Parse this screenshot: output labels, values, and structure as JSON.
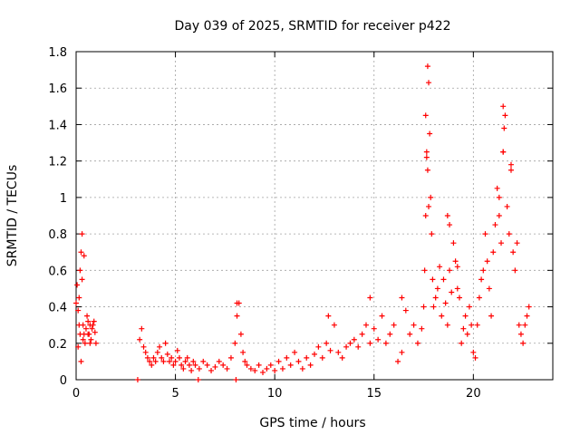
{
  "chart_data": {
    "type": "scatter",
    "title": "Day 039 of 2025, SRMTID for receiver p422",
    "xlabel": "GPS time / hours",
    "ylabel": "SRMTID / TECUs",
    "xlim": [
      0,
      24
    ],
    "ylim": [
      0,
      1.8
    ],
    "xticks": [
      "0",
      "5",
      "10",
      "15",
      "20"
    ],
    "xtick_values": [
      0,
      5,
      10,
      15,
      20
    ],
    "yticks": [
      "0",
      "0.2",
      "0.4",
      "0.6",
      "0.8",
      "1",
      "1.2",
      "1.4",
      "1.6",
      "1.8"
    ],
    "ytick_values": [
      0,
      0.2,
      0.4,
      0.6,
      0.8,
      1.0,
      1.2,
      1.4,
      1.6,
      1.8
    ],
    "grid": true,
    "marker": "+",
    "color": "#ff0000",
    "series": [
      {
        "name": "SRMTID",
        "x": [
          0.0,
          0.05,
          0.1,
          0.15,
          0.2,
          0.25,
          0.3,
          0.35,
          0.4,
          0.45,
          0.5,
          0.55,
          0.6,
          0.65,
          0.7,
          0.75,
          0.8,
          0.85,
          0.9,
          0.95,
          1.0,
          0.1,
          0.2,
          0.3,
          0.4,
          0.25,
          0.15,
          0.35,
          0.6,
          0.7,
          3.1,
          6.15,
          8.05,
          3.2,
          3.3,
          3.4,
          3.5,
          3.6,
          3.7,
          3.8,
          3.9,
          4.0,
          4.1,
          4.2,
          4.3,
          4.4,
          4.5,
          4.6,
          4.7,
          4.8,
          4.9,
          5.0,
          5.1,
          5.2,
          5.3,
          5.4,
          5.5,
          5.6,
          5.7,
          5.8,
          5.9,
          6.0,
          6.2,
          6.4,
          6.6,
          6.8,
          7.0,
          7.2,
          7.4,
          7.6,
          7.8,
          8.0,
          8.1,
          8.2,
          8.3,
          8.4,
          8.5,
          8.6,
          8.8,
          9.0,
          9.2,
          9.4,
          9.6,
          9.8,
          10.0,
          10.2,
          10.4,
          10.6,
          10.8,
          11.0,
          11.2,
          11.4,
          11.6,
          11.8,
          12.0,
          12.2,
          12.4,
          12.6,
          12.8,
          13.0,
          13.2,
          13.4,
          13.6,
          13.8,
          14.0,
          14.2,
          14.4,
          14.6,
          14.8,
          15.0,
          15.2,
          15.4,
          15.6,
          15.8,
          16.0,
          16.2,
          16.4,
          16.6,
          16.8,
          17.0,
          17.2,
          17.4,
          17.5,
          17.55,
          17.6,
          17.65,
          17.7,
          17.75,
          17.8,
          17.85,
          17.9,
          17.95,
          18.0,
          18.1,
          18.2,
          18.3,
          18.4,
          18.5,
          18.6,
          18.7,
          18.8,
          18.9,
          19.0,
          19.1,
          19.2,
          19.3,
          19.4,
          19.5,
          19.6,
          19.7,
          19.8,
          19.9,
          20.0,
          20.1,
          20.2,
          20.3,
          20.4,
          20.5,
          20.6,
          20.7,
          20.8,
          20.9,
          21.0,
          21.1,
          21.2,
          21.3,
          21.4,
          21.5,
          21.6,
          21.7,
          21.8,
          21.9,
          22.0,
          22.1,
          22.2,
          22.3,
          22.4,
          22.5,
          22.6,
          22.7,
          22.8,
          17.6,
          17.65,
          17.7,
          17.75,
          21.5,
          21.55,
          21.5,
          21.9,
          21.3,
          18.7,
          18.8,
          19.2,
          16.4,
          14.8,
          12.7,
          8.1
        ],
        "y": [
          0.42,
          0.52,
          0.38,
          0.3,
          0.6,
          0.7,
          0.55,
          0.22,
          0.25,
          0.2,
          0.28,
          0.35,
          0.32,
          0.25,
          0.3,
          0.22,
          0.28,
          0.3,
          0.32,
          0.26,
          0.2,
          0.18,
          0.25,
          0.8,
          0.68,
          0.1,
          0.45,
          0.3,
          0.25,
          0.2,
          0.0,
          0.0,
          0.0,
          0.22,
          0.28,
          0.18,
          0.15,
          0.12,
          0.1,
          0.08,
          0.12,
          0.1,
          0.15,
          0.18,
          0.12,
          0.1,
          0.2,
          0.14,
          0.1,
          0.12,
          0.08,
          0.1,
          0.16,
          0.12,
          0.08,
          0.06,
          0.1,
          0.12,
          0.08,
          0.05,
          0.1,
          0.08,
          0.06,
          0.1,
          0.08,
          0.05,
          0.07,
          0.1,
          0.08,
          0.06,
          0.12,
          0.2,
          0.35,
          0.42,
          0.25,
          0.15,
          0.1,
          0.08,
          0.06,
          0.05,
          0.08,
          0.04,
          0.06,
          0.08,
          0.05,
          0.1,
          0.06,
          0.12,
          0.08,
          0.15,
          0.1,
          0.06,
          0.12,
          0.08,
          0.14,
          0.18,
          0.12,
          0.2,
          0.16,
          0.3,
          0.15,
          0.12,
          0.18,
          0.2,
          0.22,
          0.18,
          0.25,
          0.3,
          0.2,
          0.28,
          0.22,
          0.35,
          0.2,
          0.25,
          0.3,
          0.1,
          0.15,
          0.38,
          0.25,
          0.3,
          0.2,
          0.28,
          0.4,
          0.6,
          0.9,
          1.22,
          1.72,
          1.63,
          1.35,
          1.0,
          0.8,
          0.55,
          0.4,
          0.45,
          0.5,
          0.62,
          0.35,
          0.55,
          0.42,
          0.3,
          0.6,
          0.48,
          0.75,
          0.65,
          0.5,
          0.45,
          0.2,
          0.28,
          0.35,
          0.25,
          0.4,
          0.3,
          0.15,
          0.12,
          0.3,
          0.45,
          0.55,
          0.6,
          0.8,
          0.65,
          0.5,
          0.35,
          0.7,
          0.85,
          1.05,
          0.9,
          0.75,
          1.25,
          1.45,
          0.95,
          0.8,
          1.15,
          0.7,
          0.6,
          0.75,
          0.3,
          0.25,
          0.2,
          0.3,
          0.35,
          0.4,
          1.45,
          1.25,
          1.15,
          0.95,
          1.5,
          1.38,
          1.25,
          1.18,
          1.0,
          0.9,
          0.85,
          0.62,
          0.45,
          0.45,
          0.35,
          0.42
        ]
      }
    ]
  }
}
